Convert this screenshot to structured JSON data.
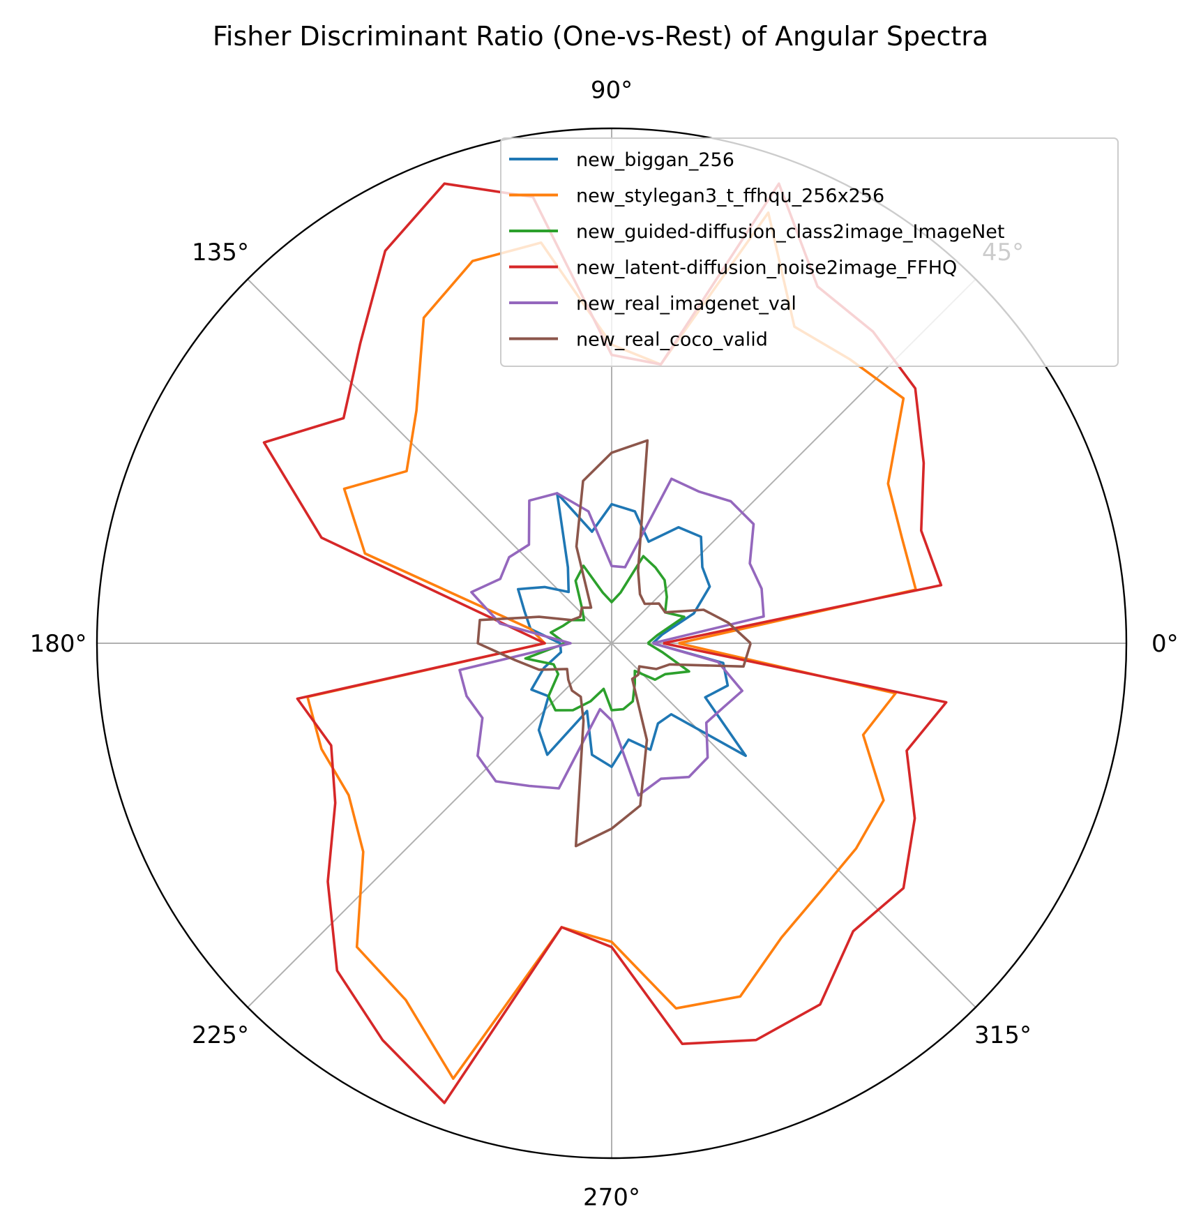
{
  "chart_data": {
    "type": "line",
    "projection": "polar",
    "title": "Fisher Discriminant Ratio (One-vs-Rest) of Angular Spectra",
    "r_max": 1.0,
    "grid": true,
    "legend_position": "top-right",
    "theta_ticks": [
      {
        "deg": 0,
        "label": "0°"
      },
      {
        "deg": 45,
        "label": "45°"
      },
      {
        "deg": 90,
        "label": "90°"
      },
      {
        "deg": 135,
        "label": "135°"
      },
      {
        "deg": 180,
        "label": "180°"
      },
      {
        "deg": 225,
        "label": "225°"
      },
      {
        "deg": 270,
        "label": "270°"
      },
      {
        "deg": 315,
        "label": "315°"
      }
    ],
    "theta_step_deg": 10,
    "series": [
      {
        "name": "new_biggan_256",
        "color": "#1f77b4",
        "r": [
          0.08,
          0.1,
          0.17,
          0.22,
          0.23,
          0.27,
          0.26,
          0.21,
          0.26,
          0.27,
          0.22,
          0.31,
          0.17,
          0.13,
          0.17,
          0.21,
          0.18,
          0.16,
          0.1,
          0.1,
          0.14,
          0.18,
          0.16,
          0.22,
          0.25,
          0.14,
          0.22,
          0.24,
          0.19,
          0.22,
          0.18,
          0.18,
          0.34,
          0.21,
          0.24,
          0.22
        ]
      },
      {
        "name": "new_stylegan3_t_ffhqu_256x256",
        "color": "#ff7f0e",
        "r": [
          0.13,
          0.6,
          0.6,
          0.62,
          0.74,
          0.72,
          0.71,
          0.89,
          0.55,
          0.58,
          0.79,
          0.79,
          0.73,
          0.59,
          0.52,
          0.6,
          0.51,
          0.16,
          0.13,
          0.6,
          0.6,
          0.59,
          0.63,
          0.77,
          0.8,
          0.9,
          0.56,
          0.58,
          0.72,
          0.73,
          0.66,
          0.63,
          0.62,
          0.61,
          0.52,
          0.56
        ]
      },
      {
        "name": "new_guided-diffusion_class2image_ImageNet",
        "color": "#2ca02c",
        "r": [
          0.07,
          0.09,
          0.15,
          0.12,
          0.14,
          0.16,
          0.17,
          0.18,
          0.1,
          0.08,
          0.1,
          0.16,
          0.14,
          0.09,
          0.07,
          0.09,
          0.1,
          0.12,
          0.09,
          0.17,
          0.12,
          0.12,
          0.16,
          0.17,
          0.15,
          0.12,
          0.09,
          0.13,
          0.13,
          0.12,
          0.09,
          0.07,
          0.11,
          0.12,
          0.16,
          0.1
        ]
      },
      {
        "name": "new_latent-diffusion_noise2image_FFHQ",
        "color": "#d62728",
        "r": [
          0.1,
          0.65,
          0.64,
          0.7,
          0.77,
          0.79,
          0.8,
          0.95,
          0.55,
          0.56,
          0.88,
          0.95,
          0.88,
          0.76,
          0.68,
          0.78,
          0.6,
          0.21,
          0.13,
          0.62,
          0.58,
          0.62,
          0.72,
          0.83,
          0.89,
          0.95,
          0.56,
          0.59,
          0.79,
          0.82,
          0.81,
          0.73,
          0.74,
          0.68,
          0.61,
          0.66
        ]
      },
      {
        "name": "new_real_imagenet_val",
        "color": "#9467bd",
        "r": [
          0.08,
          0.3,
          0.31,
          0.31,
          0.36,
          0.36,
          0.34,
          0.34,
          0.15,
          0.15,
          0.26,
          0.31,
          0.32,
          0.25,
          0.26,
          0.25,
          0.29,
          0.22,
          0.08,
          0.3,
          0.3,
          0.29,
          0.34,
          0.35,
          0.32,
          0.3,
          0.13,
          0.15,
          0.3,
          0.28,
          0.3,
          0.29,
          0.24,
          0.25,
          0.27,
          0.21
        ]
      },
      {
        "name": "new_real_coco_valid",
        "color": "#8c564b",
        "r": [
          0.27,
          0.23,
          0.19,
          0.12,
          0.12,
          0.1,
          0.11,
          0.15,
          0.4,
          0.37,
          0.32,
          0.2,
          0.08,
          0.09,
          0.08,
          0.09,
          0.15,
          0.26,
          0.26,
          0.19,
          0.15,
          0.1,
          0.11,
          0.12,
          0.12,
          0.16,
          0.4,
          0.36,
          0.32,
          0.2,
          0.08,
          0.08,
          0.07,
          0.1,
          0.12,
          0.26
        ]
      }
    ]
  }
}
